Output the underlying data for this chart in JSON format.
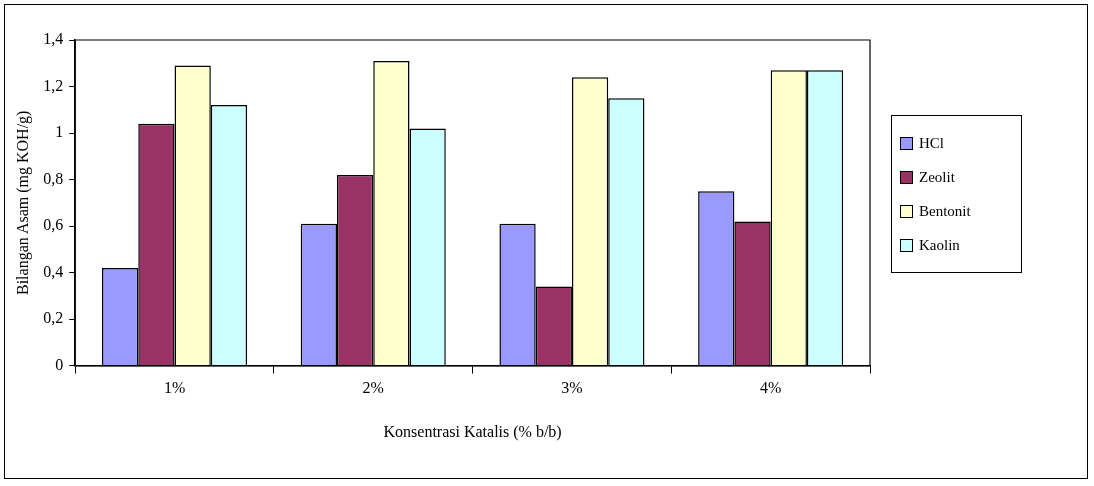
{
  "chart_data": {
    "type": "bar",
    "xlabel": "Konsentrasi Katalis (% b/b)",
    "ylabel": "Bilangan Asam (mg KOH/g)",
    "categories": [
      "1%",
      "2%",
      "3%",
      "4%"
    ],
    "series": [
      {
        "name": "HCl",
        "color": "#9999ff",
        "values": [
          0.42,
          0.61,
          0.61,
          0.75
        ]
      },
      {
        "name": "Zeolit",
        "color": "#993366",
        "values": [
          1.04,
          0.82,
          0.34,
          0.62
        ]
      },
      {
        "name": "Bentonit",
        "color": "#ffffcc",
        "values": [
          1.29,
          1.31,
          1.24,
          1.27
        ]
      },
      {
        "name": "Kaolin",
        "color": "#ccffff",
        "values": [
          1.12,
          1.02,
          1.15,
          1.27
        ]
      }
    ],
    "ylim": [
      0,
      1.4
    ],
    "yticks": [
      0,
      {
        "value": 0.2,
        "label": "0,2"
      },
      {
        "value": 0.4,
        "label": "0,4"
      },
      {
        "value": 0.6,
        "label": "0,6"
      },
      {
        "value": 0.8,
        "label": "0,8"
      },
      1,
      {
        "value": 1.2,
        "label": "1,2"
      },
      {
        "value": 1.4,
        "label": "1,4"
      }
    ],
    "grid": false,
    "legend": "right"
  }
}
